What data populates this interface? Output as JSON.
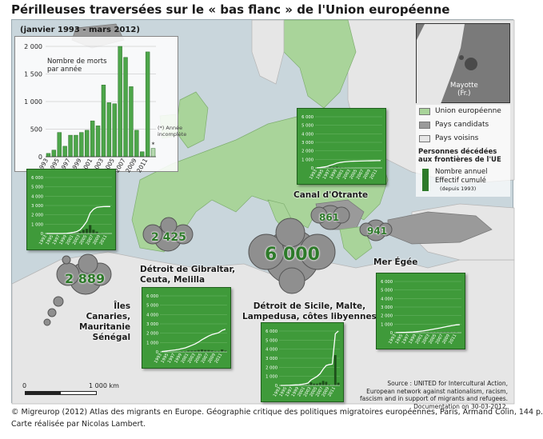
{
  "title": "Périlleuses traversées sur le « bas flanc » de l'Union européenne",
  "period": "(janvier 1993 - mars 2012)",
  "colors": {
    "eu": "#a9d49a",
    "candidate": "#9a9a9a",
    "neighbor": "#e6e6e6",
    "sea": "#c9d6dc",
    "bar": "#4da64a",
    "panel": "#3f9a3a"
  },
  "main_chart": {
    "ylabel": "Nombre de morts\npar année",
    "y_ticks": [
      "2 000",
      "1 500",
      "1 000",
      "500",
      "0"
    ],
    "x_ticks": [
      "1993",
      "1995",
      "1997",
      "1999",
      "2001",
      "2003",
      "2005",
      "2007",
      "2009",
      "2011"
    ],
    "note": "(*) Année\nincomplète",
    "last_year_mark": "*"
  },
  "chart_data": {
    "type": "bar",
    "categories": [
      "1993",
      "1994",
      "1995",
      "1996",
      "1997",
      "1998",
      "1999",
      "2000",
      "2001",
      "2002",
      "2003",
      "2004",
      "2005",
      "2006",
      "2007",
      "2008",
      "2009",
      "2010",
      "2011",
      "2012"
    ],
    "values": [
      60,
      120,
      440,
      190,
      390,
      390,
      440,
      480,
      650,
      560,
      1300,
      980,
      960,
      2000,
      1800,
      1270,
      480,
      90,
      1900,
      150
    ],
    "ylim": [
      0,
      2000
    ],
    "ylabel": "Nombre de morts par année"
  },
  "legend": {
    "eu": "Union européenne",
    "candidate": "Pays candidats",
    "neighbor": "Pays voisins",
    "deaths_title": "Personnes décédées\naux frontières de l'UE",
    "annual": "Nombre annuel",
    "cumulative": "Effectif cumulé",
    "cumulative_note": "(depuis 1993)"
  },
  "inset": {
    "label": "Mayotte\n(Fr.)"
  },
  "clouds": [
    {
      "id": "canaries",
      "value": "2 889"
    },
    {
      "id": "gibraltar",
      "value": "2 425"
    },
    {
      "id": "sicily",
      "value": "6 000"
    },
    {
      "id": "otranto",
      "value": "861"
    },
    {
      "id": "aegean",
      "value": "941"
    }
  ],
  "places": {
    "canaries": "Îles\nCanaries,\nMauritanie\nSénégal",
    "gibraltar": "Détroit de Gibraltar,\nCeuta, Melilla",
    "sicily": "Détroit de Sicile, Malte,\nLampedusa, côtes libyennes",
    "otranto": "Canal d'Otrante",
    "aegean": "Mer Égée"
  },
  "panel_axis": {
    "y_ticks": [
      "6 000",
      "5 000",
      "4 000",
      "3 000",
      "2 000",
      "1 000",
      "0"
    ],
    "x_ticks": [
      "1993",
      "1995",
      "1997",
      "1999",
      "2001",
      "2003",
      "2005",
      "2007",
      "2009",
      "2011"
    ]
  },
  "panels": [
    {
      "id": "canaries",
      "cumulative": [
        0,
        0,
        0,
        0,
        0,
        0,
        20,
        60,
        120,
        200,
        400,
        800,
        1300,
        2200,
        2600,
        2800,
        2850,
        2880,
        2889,
        2889
      ],
      "annual": [
        0,
        0,
        0,
        0,
        0,
        0,
        20,
        40,
        60,
        80,
        200,
        400,
        500,
        900,
        400,
        200,
        50,
        30,
        9,
        0
      ]
    },
    {
      "id": "gibraltar",
      "cumulative": [
        30,
        70,
        120,
        160,
        200,
        260,
        340,
        420,
        560,
        700,
        850,
        1050,
        1300,
        1500,
        1700,
        1850,
        1950,
        2050,
        2300,
        2425
      ],
      "annual": [
        30,
        40,
        50,
        40,
        40,
        60,
        80,
        80,
        140,
        140,
        150,
        200,
        250,
        200,
        200,
        150,
        100,
        100,
        250,
        125
      ]
    },
    {
      "id": "sicily",
      "cumulative": [
        0,
        0,
        10,
        20,
        40,
        60,
        80,
        120,
        180,
        260,
        600,
        800,
        1000,
        1300,
        1800,
        2200,
        2300,
        2350,
        5700,
        6000
      ],
      "annual": [
        0,
        0,
        10,
        10,
        20,
        20,
        20,
        40,
        60,
        80,
        340,
        200,
        200,
        300,
        500,
        400,
        100,
        50,
        3350,
        300
      ]
    },
    {
      "id": "otranto",
      "cumulative": [
        10,
        40,
        100,
        160,
        300,
        420,
        560,
        640,
        700,
        740,
        770,
        790,
        800,
        810,
        820,
        830,
        840,
        850,
        858,
        861
      ],
      "annual": [
        10,
        30,
        60,
        60,
        140,
        120,
        140,
        80,
        60,
        40,
        30,
        20,
        10,
        10,
        10,
        10,
        10,
        10,
        8,
        3
      ]
    },
    {
      "id": "aegean",
      "cumulative": [
        10,
        20,
        30,
        40,
        60,
        80,
        110,
        150,
        200,
        260,
        330,
        400,
        470,
        540,
        620,
        700,
        780,
        840,
        910,
        941
      ],
      "annual": [
        10,
        10,
        10,
        10,
        20,
        20,
        30,
        40,
        50,
        60,
        70,
        70,
        70,
        70,
        80,
        80,
        80,
        60,
        70,
        31
      ]
    }
  ],
  "scale": {
    "zero": "0",
    "max": "1 000 km"
  },
  "source": "Source : UNITED for Intercultural Action,\nEuropean network against nationalism, racism,\nfascism and in support of migrants and refugees.\nDocumentation on 30-03-2012.",
  "footer": {
    "credit": "© Migreurop (2012) Atlas des migrants en Europe. Géographie critique des politiques migratoires européennes, Paris, Armand Colin, 144 p.",
    "author": "Carte réalisée par Nicolas Lambert."
  }
}
